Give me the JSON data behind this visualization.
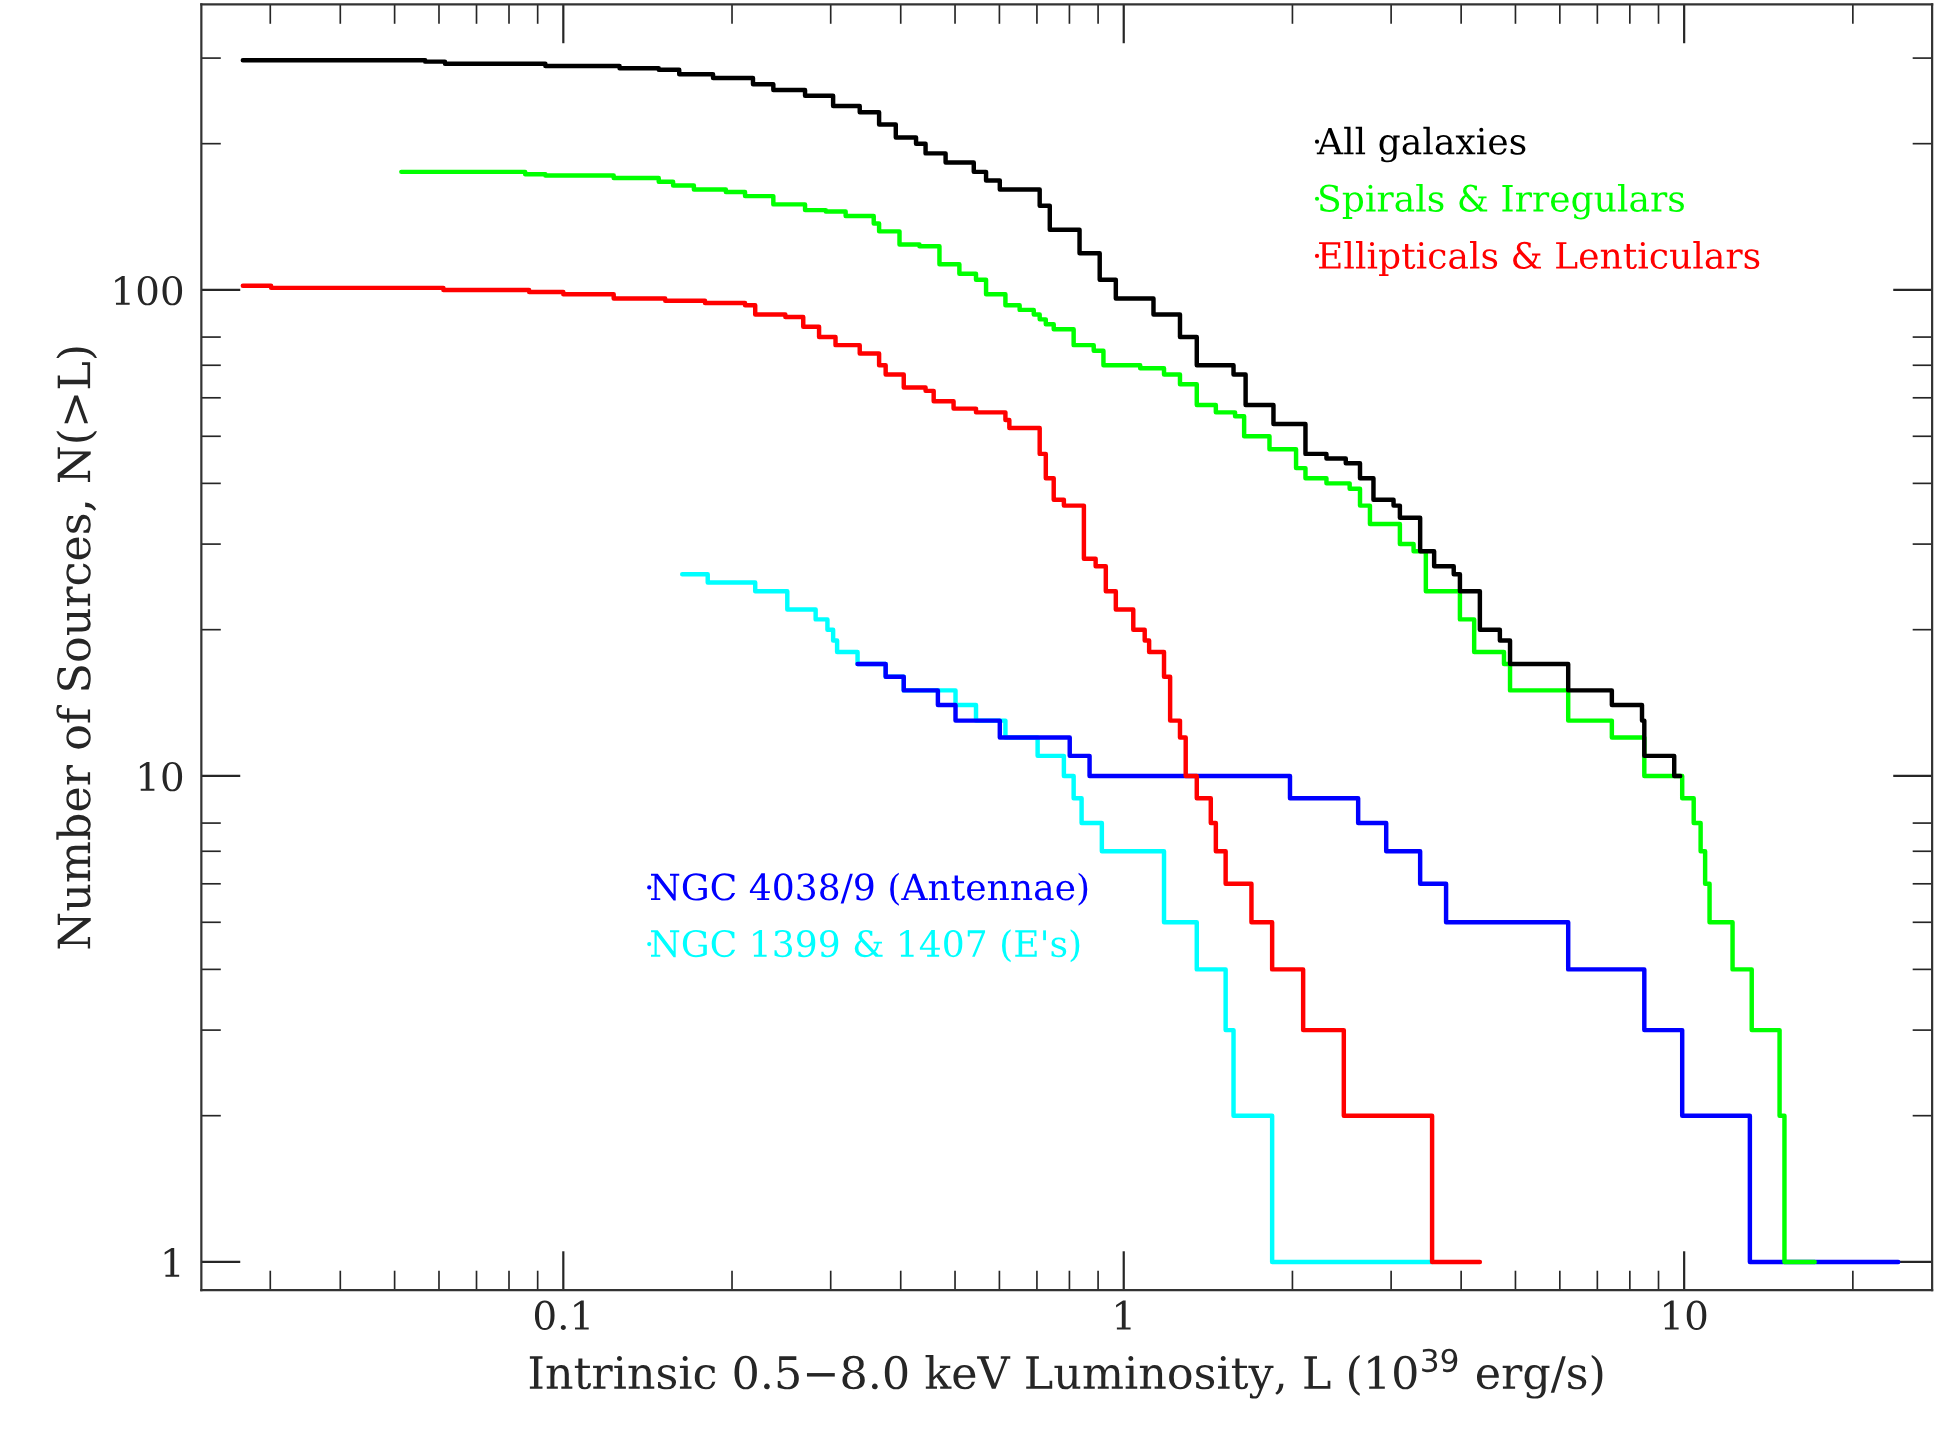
{
  "chart_data": {
    "type": "step",
    "xlabel": "Intrinsic 0.5−8.0 keV Luminosity, L (10$^{39}$ erg/s)",
    "ylabel": "Number of Sources, N(>L)",
    "log": "xy",
    "xlim": [
      0.0226,
      27.7
    ],
    "ylim": [
      0.875,
      387
    ],
    "xticks": [
      0.1,
      1,
      10
    ],
    "yticks": [
      1,
      10,
      100
    ],
    "grid": false,
    "legend": "top right",
    "line_style": "solid",
    "marker": "none",
    "series": [
      {
        "name": "All galaxies",
        "color": "#000000",
        "x": [
          0.0268,
          0.0567,
          0.0615,
          0.0929,
          0.126,
          0.148,
          0.161,
          0.185,
          0.218,
          0.237,
          0.27,
          0.303,
          0.338,
          0.366,
          0.392,
          0.426,
          0.443,
          0.481,
          0.54,
          0.568,
          0.601,
          0.708,
          0.738,
          0.834,
          0.906,
          0.968,
          1.13,
          1.26,
          1.35,
          1.57,
          1.65,
          1.85,
          2.11,
          2.3,
          2.49,
          2.64,
          2.79,
          3.03,
          3.11,
          3.38,
          3.58,
          3.88,
          3.98,
          4.32,
          4.69,
          4.89,
          6.21,
          7.43,
          8.41,
          8.49,
          9.6,
          9.84
        ],
        "values": [
          297,
          295,
          292,
          289,
          286,
          284,
          278,
          273,
          265,
          258,
          251,
          239,
          232,
          219,
          206,
          200,
          191,
          183,
          175,
          168,
          161,
          149,
          133,
          119,
          105,
          96,
          89,
          80,
          70,
          67,
          58,
          53,
          46,
          45,
          44,
          41,
          37,
          36,
          34,
          29,
          27,
          26,
          24,
          20,
          19,
          17,
          15,
          14,
          13,
          11,
          10,
          10
        ]
      },
      {
        "name": "Spirals & Irregulars",
        "color": "#00ff00",
        "x": [
          0.0514,
          0.0855,
          0.0929,
          0.123,
          0.148,
          0.157,
          0.171,
          0.195,
          0.211,
          0.237,
          0.27,
          0.294,
          0.319,
          0.358,
          0.366,
          0.398,
          0.432,
          0.469,
          0.509,
          0.545,
          0.568,
          0.615,
          0.652,
          0.691,
          0.708,
          0.726,
          0.75,
          0.814,
          0.884,
          0.92,
          1.07,
          1.18,
          1.26,
          1.35,
          1.46,
          1.58,
          1.64,
          1.82,
          2.03,
          2.11,
          2.3,
          2.53,
          2.64,
          2.75,
          3.11,
          3.29,
          3.46,
          3.98,
          4.22,
          4.77,
          4.89,
          6.21,
          7.43,
          8.49,
          9.92,
          10.4,
          10.7,
          10.9,
          11.1,
          12.2,
          13.2,
          14.8,
          15.1,
          17.1
        ],
        "values": [
          175,
          173,
          172,
          170,
          167,
          164,
          161,
          159,
          156,
          150,
          146,
          145,
          142,
          137,
          132,
          124,
          123,
          113,
          108,
          105,
          98,
          93,
          91,
          89,
          87,
          85,
          83,
          77,
          75,
          70,
          69,
          67,
          64,
          58,
          56,
          55,
          50,
          47,
          43,
          41,
          40,
          39,
          36,
          33,
          30,
          29,
          24,
          21,
          18,
          17,
          15,
          13,
          12,
          10,
          9,
          8,
          7,
          6,
          5,
          4,
          3,
          2,
          1,
          1
        ]
      },
      {
        "name": "Ellipticals & Lenticulars",
        "color": "#ff0000",
        "x": [
          0.0268,
          0.0301,
          0.0611,
          0.0869,
          0.1,
          0.123,
          0.152,
          0.179,
          0.211,
          0.22,
          0.249,
          0.268,
          0.286,
          0.306,
          0.338,
          0.366,
          0.376,
          0.405,
          0.443,
          0.458,
          0.497,
          0.545,
          0.615,
          0.625,
          0.708,
          0.726,
          0.75,
          0.782,
          0.849,
          0.891,
          0.929,
          0.968,
          1.04,
          1.09,
          1.11,
          1.18,
          1.21,
          1.26,
          1.29,
          1.35,
          1.43,
          1.46,
          1.52,
          1.69,
          1.84,
          2.09,
          2.47,
          3.55,
          4.32
        ],
        "values": [
          102,
          101,
          100,
          99,
          98,
          96,
          95,
          94,
          93,
          89,
          88,
          84,
          80,
          77,
          74,
          70,
          67,
          63,
          62,
          59,
          57,
          56,
          54,
          52,
          46,
          41,
          37,
          36,
          28,
          27,
          24,
          22,
          20,
          19,
          18,
          16,
          13,
          12,
          10,
          9,
          8,
          7,
          6,
          5,
          4,
          3,
          2,
          1,
          1
        ]
      },
      {
        "name": "NGC 4038/9 (Antennae)",
        "color": "#0000ff",
        "x": [
          0.335,
          0.376,
          0.405,
          0.466,
          0.501,
          0.601,
          0.801,
          0.869,
          1.98,
          2.62,
          2.94,
          3.38,
          3.76,
          6.21,
          8.49,
          9.92,
          13.1,
          15.1,
          24.1
        ],
        "values": [
          17,
          16,
          15,
          14,
          13,
          12,
          11,
          10,
          9,
          8,
          7,
          6,
          5,
          4,
          3,
          2,
          1,
          1,
          1
        ]
      },
      {
        "name": "NGC 1399 & 1407 (E's)",
        "color": "#00ffff",
        "x": [
          0.163,
          0.181,
          0.22,
          0.251,
          0.282,
          0.296,
          0.303,
          0.308,
          0.335,
          0.376,
          0.405,
          0.501,
          0.545,
          0.615,
          0.702,
          0.782,
          0.814,
          0.841,
          0.914,
          1.18,
          1.35,
          1.52,
          1.57,
          1.84,
          3.55
        ],
        "values": [
          26,
          25,
          24,
          22,
          21,
          20,
          19,
          18,
          17,
          16,
          15,
          14,
          13,
          12,
          11,
          10,
          9,
          8,
          7,
          5,
          4,
          3,
          2,
          1,
          1
        ]
      }
    ]
  }
}
